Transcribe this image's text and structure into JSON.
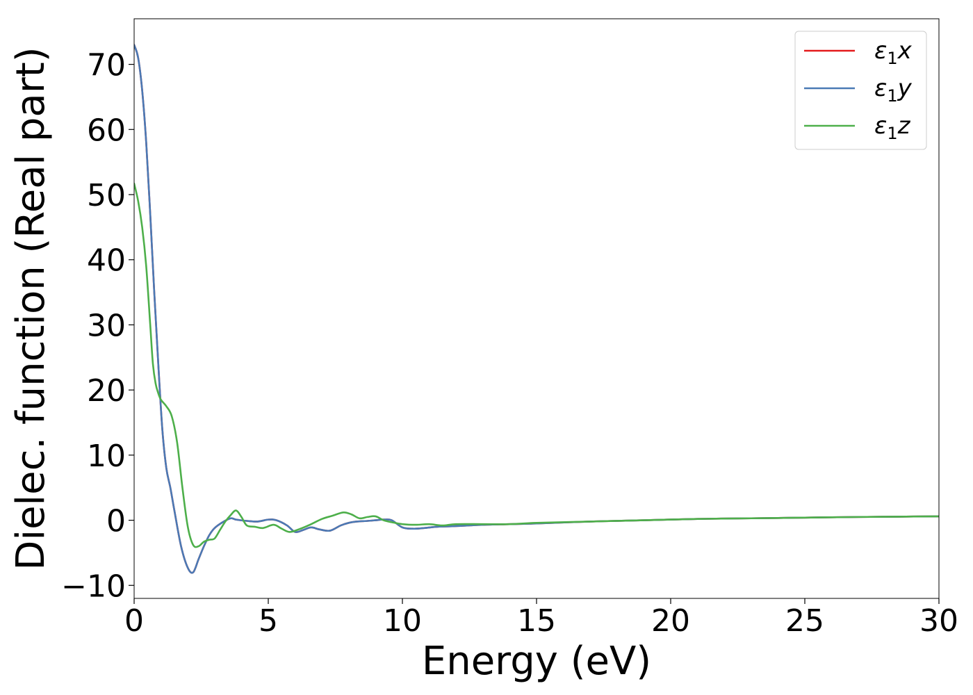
{
  "chart_data": {
    "type": "line",
    "title": "",
    "xlabel": "Energy (eV)",
    "ylabel": "Dielec. function (Real part)",
    "xlim": [
      0,
      30
    ],
    "ylim": [
      -12,
      77
    ],
    "xticks": [
      0,
      5,
      10,
      15,
      20,
      25,
      30
    ],
    "xtick_labels": [
      "0",
      "5",
      "10",
      "15",
      "20",
      "25",
      "30"
    ],
    "yticks": [
      -10,
      0,
      10,
      20,
      30,
      40,
      50,
      60,
      70
    ],
    "ytick_labels": [
      "−10",
      "0",
      "10",
      "20",
      "30",
      "40",
      "50",
      "60",
      "70"
    ],
    "grid": false,
    "legend_position": "upper-right",
    "series": [
      {
        "name": "ε₁x",
        "legend_main": "ε",
        "legend_sub": "1",
        "legend_suffix": "x",
        "color": "#e41a1c",
        "x": [
          0,
          0.15,
          0.3,
          0.45,
          0.6,
          0.75,
          0.9,
          1.05,
          1.2,
          1.35,
          1.5,
          1.75,
          2.0,
          2.2,
          2.4,
          2.6,
          2.8,
          3.0,
          3.3,
          3.6,
          3.8,
          4.2,
          4.6,
          5.0,
          5.3,
          5.7,
          6.0,
          6.3,
          6.6,
          6.9,
          7.3,
          7.7,
          8.0,
          8.3,
          8.7,
          9.0,
          9.3,
          9.6,
          10.0,
          10.4,
          10.8,
          11.3,
          12.0,
          13.0,
          14.0,
          15.0,
          17.0,
          19.0,
          21.0,
          23.0,
          25.0,
          27.0,
          28.5,
          30.0
        ],
        "y": [
          73,
          71,
          66,
          58,
          47,
          35,
          24,
          14,
          8,
          5,
          1.5,
          -4,
          -7.3,
          -8,
          -6,
          -4,
          -2.3,
          -1.2,
          -0.3,
          0.3,
          0.1,
          -0.1,
          -0.2,
          0.1,
          0,
          -0.8,
          -1.8,
          -1.5,
          -1.1,
          -1.4,
          -1.6,
          -0.8,
          -0.4,
          -0.2,
          -0.1,
          0,
          0.1,
          0,
          -1.1,
          -1.3,
          -1.2,
          -1.0,
          -0.9,
          -0.7,
          -0.6,
          -0.5,
          -0.2,
          0.0,
          0.2,
          0.3,
          0.4,
          0.5,
          0.55,
          0.6
        ]
      },
      {
        "name": "ε₁y",
        "legend_main": "ε",
        "legend_sub": "1",
        "legend_suffix": "y",
        "color": "#4a7ab5",
        "x": [
          0,
          0.15,
          0.3,
          0.45,
          0.6,
          0.75,
          0.9,
          1.05,
          1.2,
          1.35,
          1.5,
          1.75,
          2.0,
          2.2,
          2.4,
          2.6,
          2.8,
          3.0,
          3.3,
          3.6,
          3.8,
          4.2,
          4.6,
          5.0,
          5.3,
          5.7,
          6.0,
          6.3,
          6.6,
          6.9,
          7.3,
          7.7,
          8.0,
          8.3,
          8.7,
          9.0,
          9.3,
          9.6,
          10.0,
          10.4,
          10.8,
          11.3,
          12.0,
          13.0,
          14.0,
          15.0,
          17.0,
          19.0,
          21.0,
          23.0,
          25.0,
          27.0,
          28.5,
          30.0
        ],
        "y": [
          73,
          71,
          66,
          58,
          47,
          35,
          24,
          14,
          8,
          5,
          1.5,
          -4,
          -7.3,
          -8,
          -6,
          -4,
          -2.3,
          -1.2,
          -0.3,
          0.3,
          0.1,
          -0.1,
          -0.2,
          0.1,
          0,
          -0.8,
          -1.8,
          -1.5,
          -1.1,
          -1.4,
          -1.6,
          -0.8,
          -0.4,
          -0.2,
          -0.1,
          0,
          0.1,
          0,
          -1.1,
          -1.3,
          -1.2,
          -1.0,
          -0.9,
          -0.7,
          -0.6,
          -0.5,
          -0.2,
          0.0,
          0.2,
          0.3,
          0.4,
          0.5,
          0.55,
          0.6
        ]
      },
      {
        "name": "ε₁z",
        "legend_main": "ε",
        "legend_sub": "1",
        "legend_suffix": "z",
        "color": "#4daf4a",
        "x": [
          0,
          0.15,
          0.3,
          0.45,
          0.6,
          0.7,
          0.8,
          0.9,
          1.0,
          1.2,
          1.4,
          1.6,
          1.8,
          2.0,
          2.2,
          2.4,
          2.6,
          2.8,
          3.0,
          3.2,
          3.4,
          3.6,
          3.8,
          4.0,
          4.2,
          4.5,
          4.8,
          5.2,
          5.5,
          5.8,
          6.2,
          6.6,
          7.0,
          7.4,
          7.8,
          8.1,
          8.4,
          8.7,
          9.0,
          9.3,
          9.6,
          10.0,
          10.5,
          11.0,
          11.5,
          12.0,
          13.0,
          14.0,
          15.0,
          17.0,
          19.0,
          21.0,
          23.0,
          25.0,
          27.0,
          28.5,
          30.0
        ],
        "y": [
          51.7,
          49,
          45,
          39,
          30,
          24,
          21,
          19.5,
          18.5,
          17.5,
          16,
          12,
          5,
          -1,
          -3.8,
          -4,
          -3.3,
          -3,
          -2.8,
          -1.5,
          -0.2,
          0.8,
          1.5,
          0.5,
          -0.8,
          -1,
          -1.2,
          -0.7,
          -1.3,
          -1.8,
          -1.3,
          -0.6,
          0.2,
          0.7,
          1.2,
          0.9,
          0.3,
          0.5,
          0.6,
          0,
          -0.3,
          -0.6,
          -0.7,
          -0.6,
          -0.8,
          -0.6,
          -0.6,
          -0.6,
          -0.4,
          -0.2,
          0.0,
          0.2,
          0.3,
          0.4,
          0.5,
          0.55,
          0.6
        ]
      }
    ]
  }
}
